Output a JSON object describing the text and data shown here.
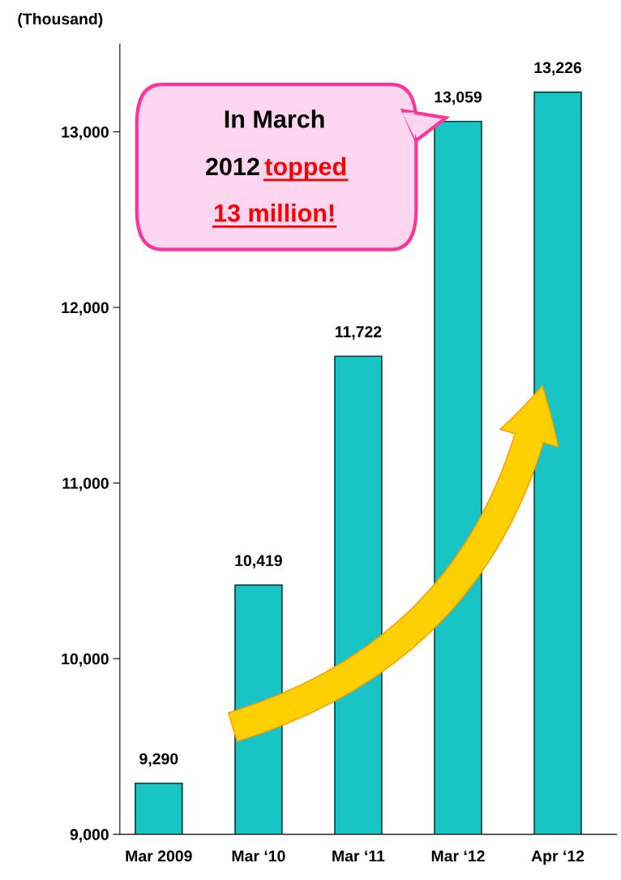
{
  "chart_data": {
    "type": "bar",
    "ylabel": "(Thousand)",
    "categories": [
      "Mar 2009",
      "Mar ‘10",
      "Mar ‘11",
      "Mar ‘12",
      "Apr ‘12"
    ],
    "values": [
      9290,
      10419,
      11722,
      13059,
      13226
    ],
    "value_labels": [
      "9,290",
      "10,419",
      "11,722",
      "13,059",
      "13,226"
    ],
    "color": "#19c4c4",
    "ylim": [
      9000,
      13500
    ],
    "yticks": [
      {
        "value": 9000,
        "label": "9,000"
      },
      {
        "value": 10000,
        "label": "10,000"
      },
      {
        "value": 11000,
        "label": "11,000"
      },
      {
        "value": 12000,
        "label": "12,000"
      },
      {
        "value": 13000,
        "label": "13,000"
      }
    ],
    "grid": false,
    "annotations": [
      "In March 2012",
      "topped 13 million!"
    ]
  }
}
